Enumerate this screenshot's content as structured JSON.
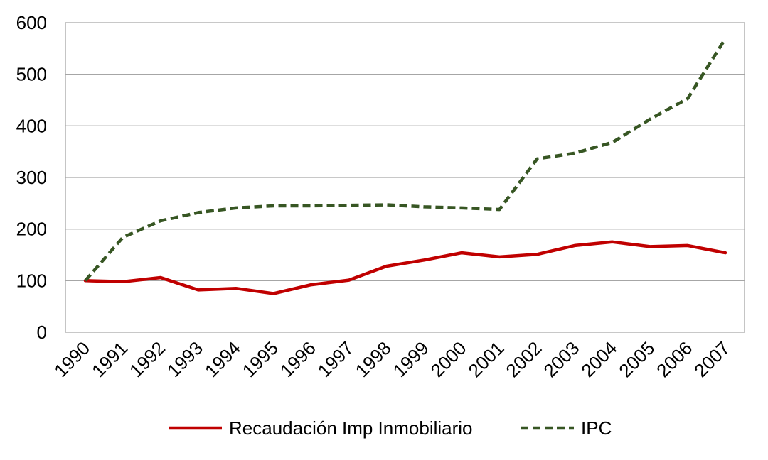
{
  "chart_data": {
    "type": "line",
    "categories": [
      "1990",
      "1991",
      "1992",
      "1993",
      "1994",
      "1995",
      "1996",
      "1997",
      "1998",
      "1999",
      "2000",
      "2001",
      "2002",
      "2003",
      "2004",
      "2005",
      "2006",
      "2007"
    ],
    "series": [
      {
        "name": "Recaudación Imp Inmobiliario",
        "color": "#c00000",
        "dash": "solid",
        "values": [
          100,
          98,
          106,
          82,
          85,
          75,
          92,
          101,
          128,
          140,
          154,
          146,
          151,
          168,
          175,
          166,
          168,
          154
        ]
      },
      {
        "name": "IPC",
        "color": "#375623",
        "dash": "dashed",
        "values": [
          100,
          184,
          216,
          232,
          241,
          245,
          245,
          246,
          247,
          243,
          241,
          238,
          336,
          347,
          368,
          413,
          453,
          569
        ]
      }
    ],
    "y_ticks": [
      "0",
      "100",
      "200",
      "300",
      "400",
      "500",
      "600"
    ],
    "ylim": [
      0,
      600
    ],
    "grid": true,
    "legend_position": "bottom"
  }
}
